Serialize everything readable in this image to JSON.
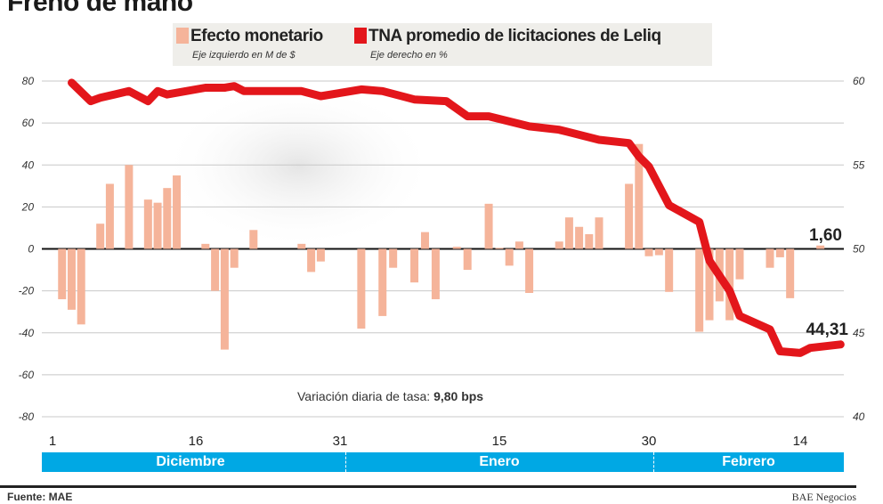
{
  "title": "Freno de mano",
  "legend": {
    "bars_label": "Efecto monetario",
    "bars_sub": "Eje izquierdo en M de $",
    "line_label": "TNA promedio de licitaciones de Leliq",
    "line_sub": "Eje derecho en %"
  },
  "colors": {
    "bars": "#f5b49a",
    "line": "#e3161b",
    "month_band": "#00a8e4"
  },
  "footer": {
    "source": "Fuente: MAE",
    "credit": "BAE Negocios"
  },
  "chart_data": {
    "type": "bar+line",
    "title": "Freno de mano",
    "grid": true,
    "left_axis": {
      "label": "Eje izquierdo en M de $",
      "range": [
        -80,
        80
      ],
      "ticks": [
        "80",
        "60",
        "40",
        "20",
        "0",
        "-20",
        "-40",
        "-60",
        "-80"
      ]
    },
    "right_axis": {
      "label": "Eje derecho en %",
      "range": [
        40,
        60
      ],
      "ticks": [
        "60",
        "55",
        "50",
        "45",
        "40"
      ]
    },
    "x_ticks": [
      {
        "month": 12,
        "day": 1,
        "label": "1"
      },
      {
        "month": 12,
        "day": 16,
        "label": "16"
      },
      {
        "month": 12,
        "day": 31,
        "label": "31"
      },
      {
        "month": 1,
        "day": 15,
        "label": "15"
      },
      {
        "month": 1,
        "day": 30,
        "label": "30"
      },
      {
        "month": 2,
        "day": 14,
        "label": "14"
      }
    ],
    "months": [
      "Diciembre",
      "Enero",
      "Febrero"
    ],
    "bars": {
      "name": "Efecto monetario",
      "points": [
        {
          "month": 12,
          "day": 2,
          "value": -24
        },
        {
          "month": 12,
          "day": 3,
          "value": -29
        },
        {
          "month": 12,
          "day": 4,
          "value": -36
        },
        {
          "month": 12,
          "day": 6,
          "value": 12
        },
        {
          "month": 12,
          "day": 7,
          "value": 31
        },
        {
          "month": 12,
          "day": 9,
          "value": 40
        },
        {
          "month": 12,
          "day": 11,
          "value": 23.5
        },
        {
          "month": 12,
          "day": 12,
          "value": 22
        },
        {
          "month": 12,
          "day": 13,
          "value": 29
        },
        {
          "month": 12,
          "day": 14,
          "value": 35
        },
        {
          "month": 12,
          "day": 17,
          "value": 2.4
        },
        {
          "month": 12,
          "day": 18,
          "value": -20
        },
        {
          "month": 12,
          "day": 19,
          "value": -48
        },
        {
          "month": 12,
          "day": 20,
          "value": -9
        },
        {
          "month": 12,
          "day": 22,
          "value": 9
        },
        {
          "month": 12,
          "day": 27,
          "value": 2.4
        },
        {
          "month": 12,
          "day": 28,
          "value": -11
        },
        {
          "month": 12,
          "day": 29,
          "value": -6
        },
        {
          "month": 1,
          "day": 2,
          "value": -38
        },
        {
          "month": 1,
          "day": 4,
          "value": -32
        },
        {
          "month": 1,
          "day": 5,
          "value": -9
        },
        {
          "month": 1,
          "day": 7,
          "value": -16
        },
        {
          "month": 1,
          "day": 8,
          "value": 8
        },
        {
          "month": 1,
          "day": 9,
          "value": -24
        },
        {
          "month": 1,
          "day": 11,
          "value": 1
        },
        {
          "month": 1,
          "day": 12,
          "value": -10
        },
        {
          "month": 1,
          "day": 14,
          "value": 21.5
        },
        {
          "month": 1,
          "day": 15,
          "value": 0.5
        },
        {
          "month": 1,
          "day": 16,
          "value": -8
        },
        {
          "month": 1,
          "day": 17,
          "value": 3.5
        },
        {
          "month": 1,
          "day": 18,
          "value": -21
        },
        {
          "month": 1,
          "day": 21,
          "value": 3.5
        },
        {
          "month": 1,
          "day": 22,
          "value": 15
        },
        {
          "month": 1,
          "day": 23,
          "value": 10.5
        },
        {
          "month": 1,
          "day": 24,
          "value": 7
        },
        {
          "month": 1,
          "day": 25,
          "value": 15
        },
        {
          "month": 1,
          "day": 28,
          "value": 31
        },
        {
          "month": 1,
          "day": 29,
          "value": 50
        },
        {
          "month": 1,
          "day": 30,
          "value": -3.5
        },
        {
          "month": 1,
          "day": 31,
          "value": -3
        },
        {
          "month": 2,
          "day": 1,
          "value": -20.5
        },
        {
          "month": 2,
          "day": 4,
          "value": -39.5
        },
        {
          "month": 2,
          "day": 5,
          "value": -34
        },
        {
          "month": 2,
          "day": 6,
          "value": -25
        },
        {
          "month": 2,
          "day": 7,
          "value": -34
        },
        {
          "month": 2,
          "day": 8,
          "value": -14.5
        },
        {
          "month": 2,
          "day": 11,
          "value": -9
        },
        {
          "month": 2,
          "day": 12,
          "value": -4
        },
        {
          "month": 2,
          "day": 13,
          "value": -23.5
        },
        {
          "month": 2,
          "day": 16,
          "value": 1.6
        }
      ]
    },
    "line": {
      "name": "TNA promedio de licitaciones de Leliq",
      "points": [
        {
          "month": 12,
          "day": 3,
          "value": 59.9
        },
        {
          "month": 12,
          "day": 5,
          "value": 58.8
        },
        {
          "month": 12,
          "day": 6,
          "value": 59.0
        },
        {
          "month": 12,
          "day": 9,
          "value": 59.4
        },
        {
          "month": 12,
          "day": 11,
          "value": 58.8
        },
        {
          "month": 12,
          "day": 12,
          "value": 59.4
        },
        {
          "month": 12,
          "day": 13,
          "value": 59.2
        },
        {
          "month": 12,
          "day": 17,
          "value": 59.6
        },
        {
          "month": 12,
          "day": 19,
          "value": 59.6
        },
        {
          "month": 12,
          "day": 20,
          "value": 59.7
        },
        {
          "month": 12,
          "day": 21,
          "value": 59.4
        },
        {
          "month": 12,
          "day": 27,
          "value": 59.4
        },
        {
          "month": 12,
          "day": 29,
          "value": 59.1
        },
        {
          "month": 1,
          "day": 2,
          "value": 59.5
        },
        {
          "month": 1,
          "day": 4,
          "value": 59.4
        },
        {
          "month": 1,
          "day": 7,
          "value": 58.9
        },
        {
          "month": 1,
          "day": 10,
          "value": 58.8
        },
        {
          "month": 1,
          "day": 12,
          "value": 57.9
        },
        {
          "month": 1,
          "day": 14,
          "value": 57.9
        },
        {
          "month": 1,
          "day": 18,
          "value": 57.3
        },
        {
          "month": 1,
          "day": 21,
          "value": 57.1
        },
        {
          "month": 1,
          "day": 25,
          "value": 56.5
        },
        {
          "month": 1,
          "day": 28,
          "value": 56.3
        },
        {
          "month": 1,
          "day": 29,
          "value": 55.5
        },
        {
          "month": 1,
          "day": 30,
          "value": 54.9
        },
        {
          "month": 2,
          "day": 1,
          "value": 52.6
        },
        {
          "month": 2,
          "day": 4,
          "value": 51.6
        },
        {
          "month": 2,
          "day": 5,
          "value": 49.3
        },
        {
          "month": 2,
          "day": 7,
          "value": 47.5
        },
        {
          "month": 2,
          "day": 8,
          "value": 46.0
        },
        {
          "month": 2,
          "day": 11,
          "value": 45.2
        },
        {
          "month": 2,
          "day": 12,
          "value": 43.9
        },
        {
          "month": 2,
          "day": 14,
          "value": 43.8
        },
        {
          "month": 2,
          "day": 15,
          "value": 44.1
        },
        {
          "month": 2,
          "day": 18,
          "value": 44.31
        }
      ]
    },
    "annotations": {
      "last_bar": "1,60",
      "last_rate": "44,31",
      "note_label": "Variación diaria de tasa:",
      "note_value": "9,80 bps"
    }
  }
}
